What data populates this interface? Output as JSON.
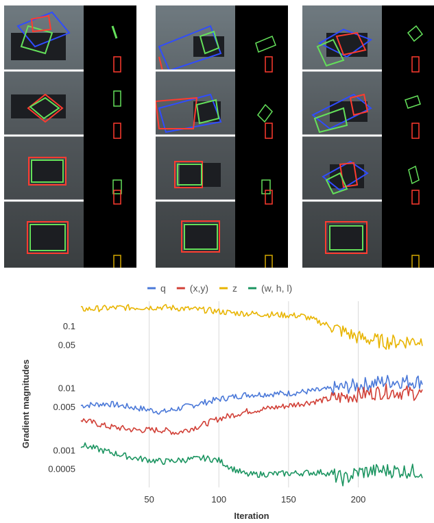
{
  "colors": {
    "q": "#4a78d8",
    "xy": "#d13f36",
    "z": "#e8b400",
    "whl": "#1b9460",
    "box_red": "#ff3b2f",
    "box_green": "#64e05a",
    "box_blue": "#2f4cff"
  },
  "chart_data": {
    "type": "line",
    "xlabel": "Iteration",
    "ylabel": "Gradient magnitudes",
    "yscale": "log",
    "xlim": [
      1,
      246
    ],
    "ylim": [
      0.00025,
      0.25
    ],
    "x_ticks": [
      50,
      100,
      150,
      200
    ],
    "x_tick_labels": [
      "50",
      "100",
      "150",
      "200"
    ],
    "y_ticks": [
      0.1,
      0.05,
      0.01,
      0.005,
      0.001,
      0.0005
    ],
    "y_tick_labels": [
      "0.1",
      "0.05",
      "0.01",
      "0.005",
      "0.001",
      "0.0005"
    ],
    "grid": "vertical",
    "legend_position": "top",
    "series": [
      {
        "name": "q",
        "color_key": "q",
        "x": [
          1,
          20,
          40,
          60,
          80,
          100,
          120,
          150,
          175,
          200,
          220,
          246
        ],
        "values": [
          0.0052,
          0.0056,
          0.0048,
          0.0041,
          0.0052,
          0.0066,
          0.0078,
          0.0082,
          0.0093,
          0.011,
          0.0128,
          0.0128
        ]
      },
      {
        "name": "(x,y)",
        "color_key": "xy",
        "x": [
          1,
          20,
          40,
          60,
          70,
          85,
          100,
          120,
          150,
          175,
          200,
          220,
          246
        ],
        "values": [
          0.0031,
          0.0024,
          0.0021,
          0.0021,
          0.0019,
          0.0024,
          0.0032,
          0.0042,
          0.0052,
          0.0064,
          0.0078,
          0.0088,
          0.0081
        ]
      },
      {
        "name": "z",
        "color_key": "z",
        "x": [
          1,
          30,
          60,
          90,
          110,
          140,
          160,
          175,
          190,
          200,
          220,
          246
        ],
        "values": [
          0.185,
          0.197,
          0.2,
          0.18,
          0.162,
          0.152,
          0.145,
          0.11,
          0.08,
          0.065,
          0.055,
          0.058
        ]
      },
      {
        "name": "(w, h, l)",
        "color_key": "whl",
        "x": [
          1,
          20,
          40,
          60,
          90,
          100,
          110,
          120,
          150,
          175,
          190,
          200,
          220,
          246
        ],
        "values": [
          0.00122,
          0.00094,
          0.00074,
          0.00065,
          0.00074,
          0.00068,
          0.0005,
          0.0004,
          0.00042,
          0.00044,
          0.00034,
          0.00044,
          0.00047,
          0.00045
        ]
      }
    ]
  }
}
